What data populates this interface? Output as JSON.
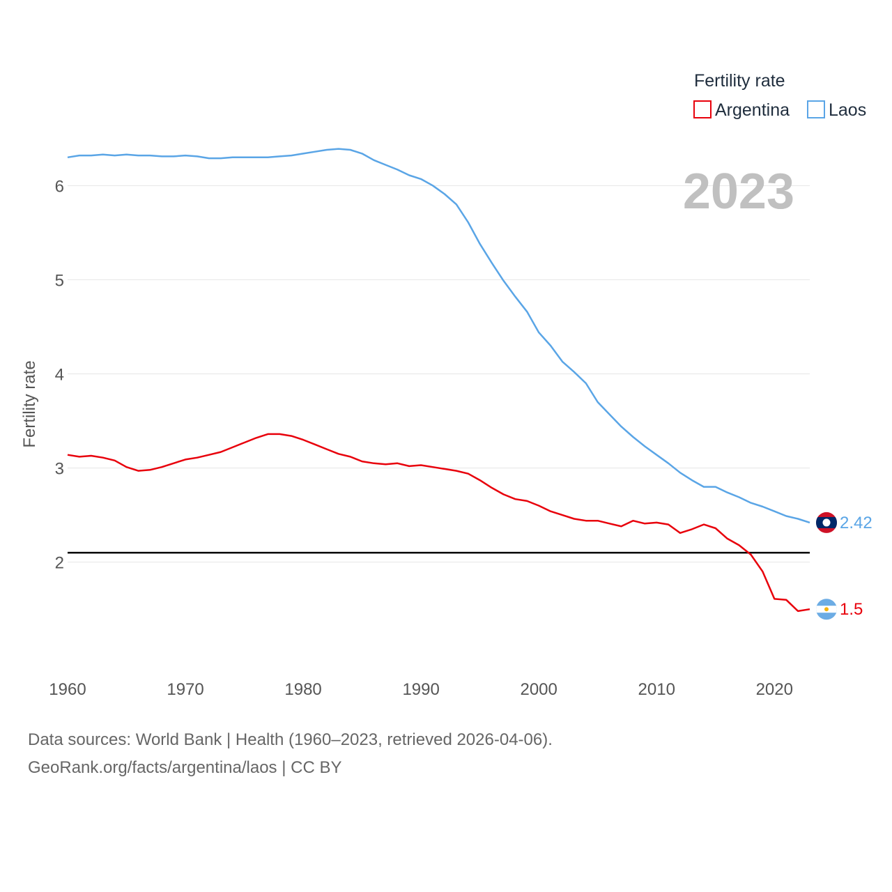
{
  "chart_data": {
    "type": "line",
    "year_label": "2023",
    "ylabel": "Fertility rate",
    "xlabel": "",
    "xlim": [
      1960,
      2023
    ],
    "ylim": [
      1.05,
      6.75
    ],
    "yticks": [
      2,
      3,
      4,
      5,
      6
    ],
    "xticks": [
      1960,
      1970,
      1980,
      1990,
      2000,
      2010,
      2020
    ],
    "replacement_level": 2.1,
    "legend": {
      "title": "Fertility rate",
      "position": "top-right"
    },
    "x": [
      1960,
      1961,
      1962,
      1963,
      1964,
      1965,
      1966,
      1967,
      1968,
      1969,
      1970,
      1971,
      1972,
      1973,
      1974,
      1975,
      1976,
      1977,
      1978,
      1979,
      1980,
      1981,
      1982,
      1983,
      1984,
      1985,
      1986,
      1987,
      1988,
      1989,
      1990,
      1991,
      1992,
      1993,
      1994,
      1995,
      1996,
      1997,
      1998,
      1999,
      2000,
      2001,
      2002,
      2003,
      2004,
      2005,
      2006,
      2007,
      2008,
      2009,
      2010,
      2011,
      2012,
      2013,
      2014,
      2015,
      2016,
      2017,
      2018,
      2019,
      2020,
      2021,
      2022,
      2023
    ],
    "series": [
      {
        "name": "Argentina",
        "color": "#e8000b",
        "end_label": "1.5",
        "flag": "argentina-flag-icon",
        "values": [
          3.14,
          3.12,
          3.13,
          3.11,
          3.08,
          3.01,
          2.97,
          2.98,
          3.01,
          3.05,
          3.09,
          3.11,
          3.14,
          3.17,
          3.22,
          3.27,
          3.32,
          3.36,
          3.36,
          3.34,
          3.3,
          3.25,
          3.2,
          3.15,
          3.12,
          3.07,
          3.05,
          3.04,
          3.05,
          3.02,
          3.03,
          3.01,
          2.99,
          2.97,
          2.94,
          2.87,
          2.79,
          2.72,
          2.67,
          2.65,
          2.6,
          2.54,
          2.5,
          2.46,
          2.44,
          2.44,
          2.41,
          2.38,
          2.44,
          2.41,
          2.42,
          2.4,
          2.31,
          2.35,
          2.4,
          2.36,
          2.25,
          2.18,
          2.08,
          1.9,
          1.61,
          1.6,
          1.48,
          1.5
        ]
      },
      {
        "name": "Laos",
        "color": "#5aa5e6",
        "end_label": "2.42",
        "flag": "laos-flag-icon",
        "values": [
          6.3,
          6.32,
          6.32,
          6.33,
          6.32,
          6.33,
          6.32,
          6.32,
          6.31,
          6.31,
          6.32,
          6.31,
          6.29,
          6.29,
          6.3,
          6.3,
          6.3,
          6.3,
          6.31,
          6.32,
          6.34,
          6.36,
          6.38,
          6.39,
          6.38,
          6.34,
          6.27,
          6.22,
          6.17,
          6.11,
          6.07,
          6.0,
          5.91,
          5.8,
          5.61,
          5.38,
          5.18,
          4.99,
          4.82,
          4.66,
          4.44,
          4.3,
          4.13,
          4.02,
          3.9,
          3.7,
          3.57,
          3.44,
          3.33,
          3.23,
          3.14,
          3.05,
          2.95,
          2.87,
          2.8,
          2.8,
          2.74,
          2.69,
          2.63,
          2.59,
          2.54,
          2.49,
          2.46,
          2.42
        ]
      }
    ]
  },
  "footer": {
    "line1": "Data sources: World Bank | Health (1960–2023, retrieved 2026-04-06).",
    "line2": "GeoRank.org/facts/argentina/laos | CC BY"
  },
  "colors": {
    "argentina": "#e8000b",
    "laos": "#5aa5e6",
    "grid": "#e6e6e6",
    "replacement_line": "#000000"
  }
}
